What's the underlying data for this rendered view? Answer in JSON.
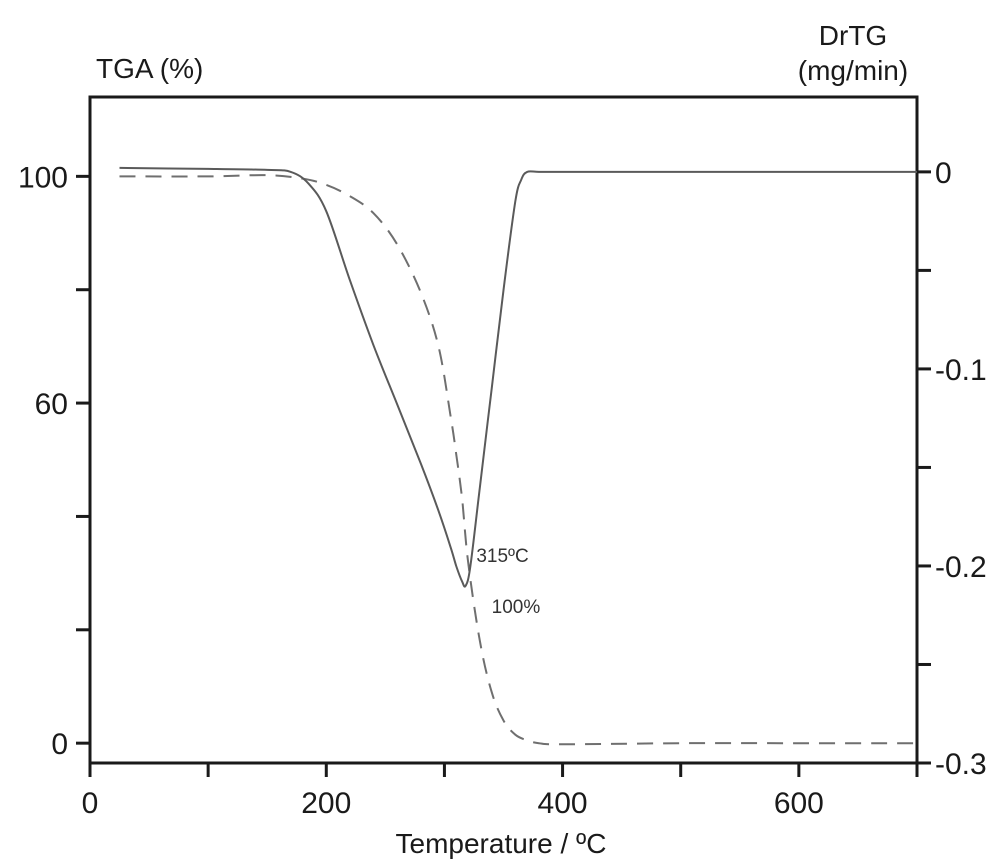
{
  "chart_data": {
    "type": "line",
    "xlabel": "Temperature / ºC",
    "y_left_label": "TGA (%)",
    "y_right_label_line1": "DrTG",
    "y_right_label_line2": "(mg/min)",
    "xlim": [
      0,
      700
    ],
    "y_left_lim": [
      -3.5,
      114
    ],
    "y_right_lim": [
      -0.3,
      0.038
    ],
    "x_ticks": [
      0,
      100,
      200,
      300,
      400,
      500,
      600,
      700
    ],
    "x_tick_labels": [
      "0",
      "",
      "200",
      "",
      "400",
      "",
      "600",
      ""
    ],
    "y_left_ticks": [
      0,
      20,
      40,
      60,
      80,
      100
    ],
    "y_left_tick_labels": [
      "0",
      "",
      "",
      "60",
      "",
      "100"
    ],
    "y_right_ticks": [
      0,
      -0.05,
      -0.1,
      -0.15,
      -0.2,
      -0.25,
      -0.3
    ],
    "y_right_tick_labels": [
      "0",
      "",
      "-0.1",
      "",
      "-0.2",
      "",
      "-0.3"
    ],
    "grid": false,
    "series": [
      {
        "axis": "left",
        "style": "dashed",
        "x": [
          25,
          100,
          150,
          180,
          200,
          220,
          240,
          260,
          280,
          295,
          305,
          310,
          315,
          320,
          330,
          340,
          350,
          360,
          370,
          380,
          400,
          500,
          600,
          700
        ],
        "y": [
          100,
          100,
          100.2,
          99.6,
          98.5,
          96.5,
          93.5,
          88,
          79.5,
          70,
          58,
          51,
          43,
          32,
          18,
          9,
          4,
          1.5,
          0.5,
          0,
          -0.2,
          0,
          0,
          0
        ]
      },
      {
        "axis": "right",
        "style": "solid",
        "x": [
          25,
          100,
          150,
          170,
          185,
          200,
          220,
          240,
          260,
          280,
          295,
          305,
          310,
          315,
          318,
          322,
          330,
          340,
          350,
          360,
          365,
          370,
          380,
          400,
          500,
          600,
          700
        ],
        "y": [
          0.002,
          0.0015,
          0.001,
          0,
          -0.006,
          -0.02,
          -0.055,
          -0.088,
          -0.118,
          -0.148,
          -0.172,
          -0.19,
          -0.2,
          -0.208,
          -0.21,
          -0.2,
          -0.16,
          -0.11,
          -0.06,
          -0.015,
          -0.004,
          0,
          0,
          0,
          0,
          0,
          0
        ]
      }
    ],
    "annotations": [
      {
        "text": "315ºC",
        "x": 327,
        "y_left": 32
      },
      {
        "text": "100%",
        "x": 340,
        "y_left": 23
      }
    ]
  }
}
